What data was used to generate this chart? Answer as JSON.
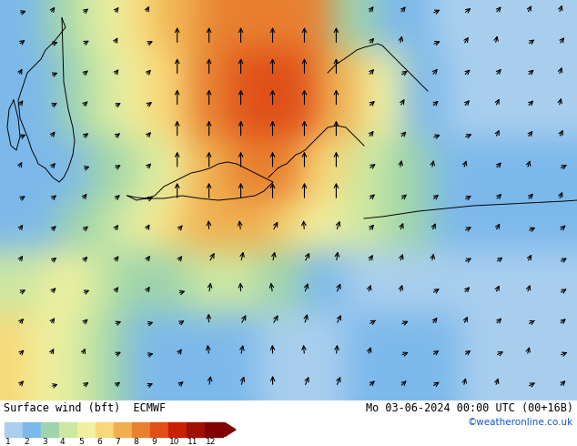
{
  "title_left": "Surface wind (bft)  ECMWF",
  "title_right": "Mo 03-06-2024 00:00 UTC (00+16B)",
  "credit": "©weatheronline.co.uk",
  "colorbar_colors": [
    "#aacfee",
    "#7cb9eb",
    "#9ed4ac",
    "#cce8a2",
    "#f0f0a0",
    "#f8d878",
    "#f0b050",
    "#e88030",
    "#e05018",
    "#c82000",
    "#a01000",
    "#800000"
  ],
  "colorbar_levels": [
    1,
    2,
    3,
    4,
    5,
    6,
    7,
    8,
    9,
    10,
    11,
    12
  ],
  "bg_ocean": "#78c8e8",
  "fig_width": 6.34,
  "fig_height": 4.9,
  "dpi": 100
}
